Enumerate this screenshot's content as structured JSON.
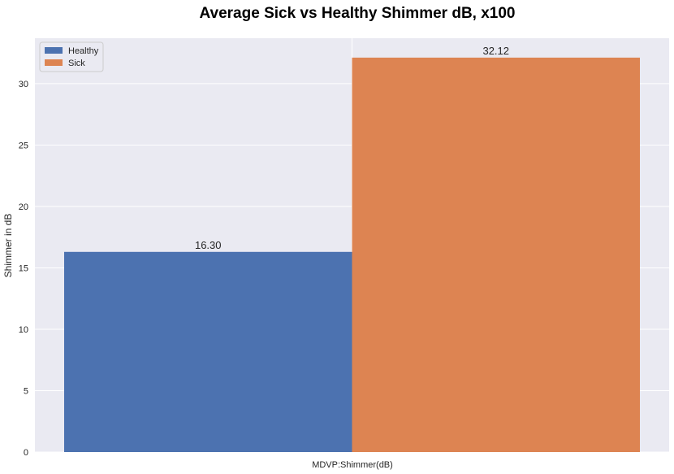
{
  "chart_data": {
    "type": "bar",
    "title": "Average Sick vs Healthy Shimmer dB, x100",
    "xlabel": "MDVP:Shimmer(dB)",
    "ylabel": "Shimmer in dB",
    "ylim": [
      0,
      33.7
    ],
    "yticks": [
      0,
      5,
      10,
      15,
      20,
      25,
      30
    ],
    "grid": true,
    "legend_position": "top-left",
    "series": [
      {
        "name": "Healthy",
        "value": 16.3,
        "label": "16.30",
        "color": "#4c72b0"
      },
      {
        "name": "Sick",
        "value": 32.12,
        "label": "32.12",
        "color": "#dd8452"
      }
    ]
  }
}
